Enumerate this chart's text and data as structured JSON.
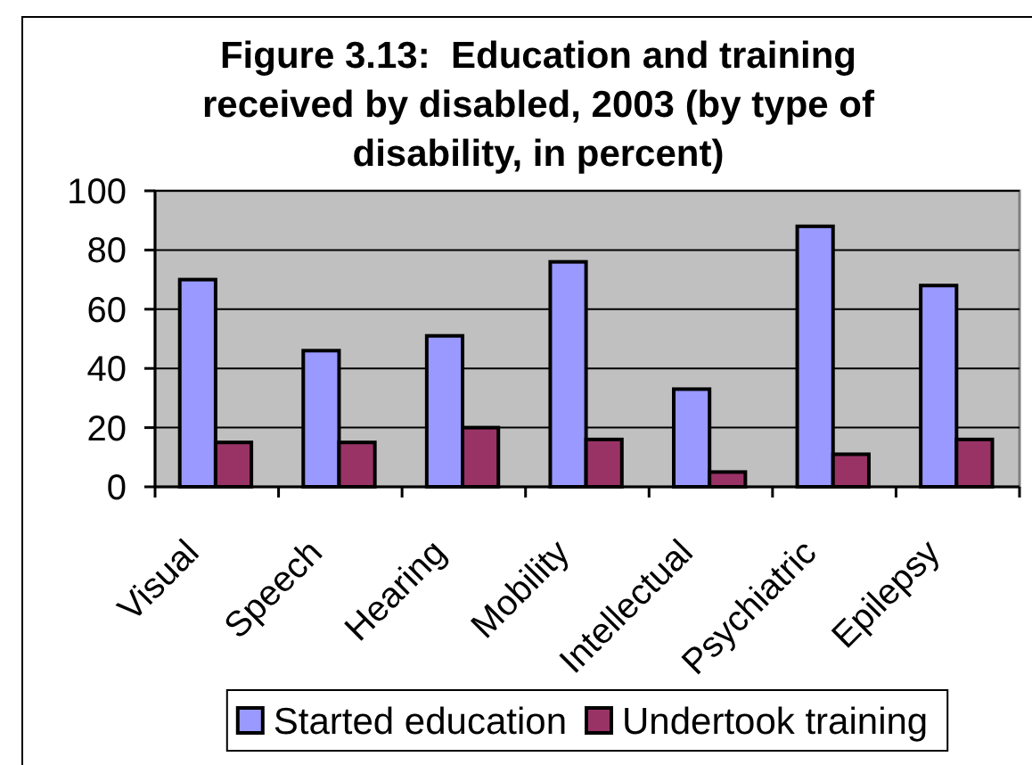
{
  "chart_data": {
    "type": "bar",
    "title": "Figure 3.13:  Education and training received by disabled, 2003 (by type of disability, in percent)",
    "categories": [
      "Visual",
      "Speech",
      "Hearing",
      "Mobility",
      "Intellectual",
      "Psychiatric",
      "Epilepsy"
    ],
    "series": [
      {
        "name": "Started education",
        "color": "#9999ff",
        "values": [
          70,
          46,
          51,
          76,
          33,
          88,
          68
        ]
      },
      {
        "name": "Undertook training",
        "color": "#993366",
        "values": [
          15,
          15,
          20,
          16,
          5,
          11,
          16
        ]
      }
    ],
    "ylim": [
      0,
      100
    ],
    "yticks": [
      0,
      20,
      40,
      60,
      80,
      100
    ],
    "grid": "y",
    "legend": "bottom"
  }
}
